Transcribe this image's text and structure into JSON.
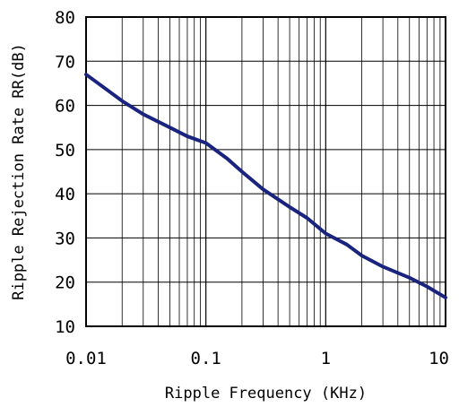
{
  "chart_data": {
    "type": "line",
    "title": "",
    "xlabel": "Ripple Frequency (KHz)",
    "ylabel": "Ripple Rejection Rate RR(dB)",
    "x_scale": "log",
    "xlim": [
      0.01,
      10
    ],
    "ylim": [
      10,
      80
    ],
    "grid": true,
    "x_ticks": [
      0.01,
      0.1,
      1,
      10
    ],
    "x_tick_labels": [
      "0.01",
      "0.1",
      "1",
      "10"
    ],
    "y_ticks": [
      10,
      20,
      30,
      40,
      50,
      60,
      70,
      80
    ],
    "y_tick_labels": [
      "10",
      "20",
      "30",
      "40",
      "50",
      "60",
      "70",
      "80"
    ],
    "line_color": "#1a237e",
    "series": [
      {
        "x": [
          0.01,
          0.015,
          0.02,
          0.03,
          0.05,
          0.07,
          0.1,
          0.15,
          0.2,
          0.3,
          0.5,
          0.7,
          1,
          1.5,
          2,
          3,
          5,
          7,
          10
        ],
        "y": [
          67,
          63.5,
          61,
          58,
          55,
          53,
          51.5,
          48,
          45,
          41,
          37,
          34.5,
          31,
          28.5,
          26,
          23.5,
          21,
          19,
          16.5
        ]
      }
    ]
  }
}
